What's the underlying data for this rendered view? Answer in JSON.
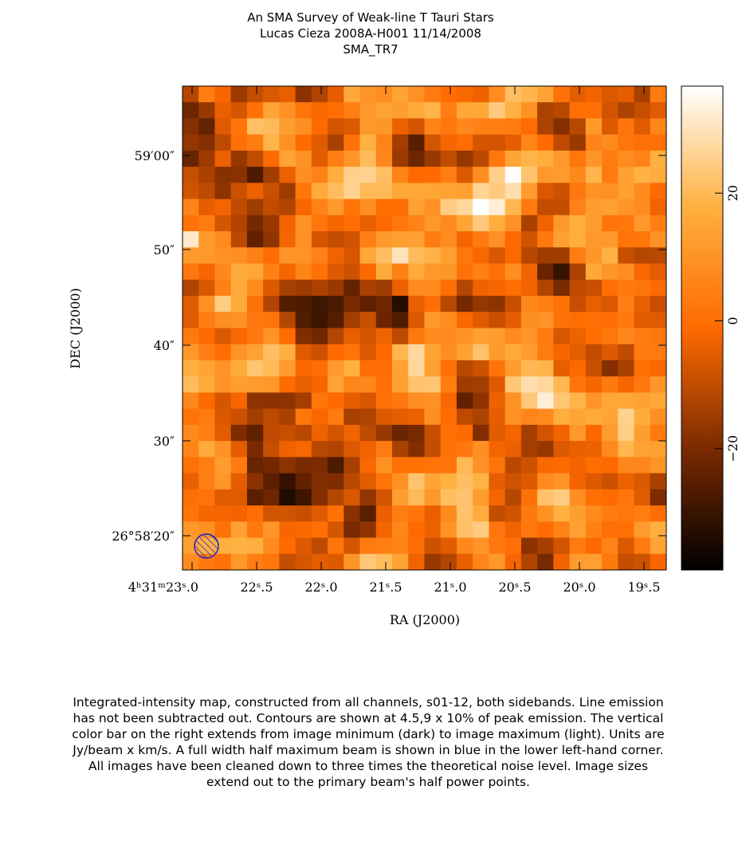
{
  "header": {
    "title_lines": [
      "An SMA Survey of Weak-line T Tauri Stars",
      "Lucas Cieza   2008A-H001   11/14/2008",
      "SMA_TR7"
    ]
  },
  "plot": {
    "y_axis_label": "DEC (J2000)",
    "x_axis_label": "RA (J2000)",
    "y_tick_labels": [
      "59′00″",
      "50″",
      "40″",
      "30″",
      "26°58′20″"
    ],
    "x_tick_labels": [
      "4ʰ31ᵐ23ˢ.0",
      "22ˢ.5",
      "22ˢ.0",
      "21ˢ.5",
      "21ˢ.0",
      "20ˢ.5",
      "20ˢ.0",
      "19ˢ.5"
    ]
  },
  "colorbar": {
    "range": [
      -39,
      36.75
    ],
    "ticks": [
      20,
      0,
      {
        "value": -20,
        "label": "−20"
      }
    ]
  },
  "caption": [
    "Integrated-intensity map, constructed from all channels, s01-12, both sidebands.  Line emission",
    "has not been subtracted out.  Contours are shown at 4.5,9 x 10% of peak emission.  The vertical",
    "color bar on the right extends from image minimum (dark) to image maximum (light).  Units are",
    "Jy/beam x km/s.  A full width half maximum beam is shown in blue in the lower left-hand corner.",
    "All images have been cleaned down to three times the theoretical noise level.  Image sizes",
    "extend out to the primary beam's half power points."
  ]
}
